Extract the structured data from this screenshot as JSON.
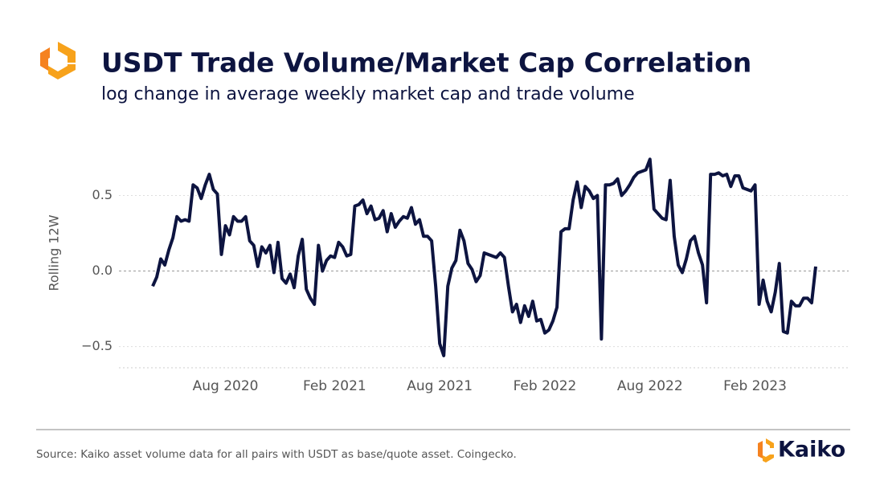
{
  "chart_data": {
    "type": "line",
    "title": "USDT Trade Volume/Market Cap Correlation",
    "subtitle": "log change in average weekly market cap and trade volume",
    "y_label": "Rolling 12W",
    "color": "#0d1440",
    "categories": [
      null,
      null,
      null,
      null,
      null,
      null,
      null,
      null,
      null,
      null,
      null,
      null,
      null,
      null,
      null,
      null,
      null,
      null,
      "Aug 2020",
      null,
      null,
      null,
      null,
      null,
      null,
      null,
      null,
      null,
      null,
      null,
      null,
      null,
      null,
      null,
      null,
      null,
      null,
      null,
      null,
      null,
      null,
      null,
      null,
      null,
      null,
      "Feb 2021",
      null,
      null,
      null,
      null,
      null,
      null,
      null,
      null,
      null,
      null,
      null,
      null,
      null,
      null,
      null,
      null,
      null,
      null,
      null,
      null,
      null,
      null,
      null,
      null,
      null,
      "Aug 2021",
      null,
      null,
      null,
      null,
      null,
      null,
      null,
      null,
      null,
      null,
      null,
      null,
      null,
      null,
      null,
      null,
      null,
      null,
      null,
      null,
      null,
      null,
      null,
      null,
      null,
      "Feb 2022",
      null,
      null,
      null,
      null,
      null,
      null,
      null,
      null,
      null,
      null,
      null,
      null,
      null,
      null,
      null,
      null,
      null,
      null,
      null,
      null,
      null,
      null,
      null,
      null,
      null,
      "Aug 2022",
      null,
      null,
      null,
      null,
      null,
      null,
      null,
      null,
      null,
      null,
      null,
      null,
      null,
      null,
      null,
      null,
      null,
      null,
      null,
      null,
      null,
      null,
      null,
      null,
      null,
      "Feb 2023",
      null,
      null,
      null,
      null,
      null,
      null,
      null,
      null,
      null,
      null,
      null,
      null,
      null,
      null,
      null
    ],
    "values": [
      -0.1,
      -0.04,
      0.08,
      0.04,
      0.14,
      0.22,
      0.36,
      0.33,
      0.34,
      0.33,
      0.57,
      0.55,
      0.48,
      0.57,
      0.64,
      0.54,
      0.51,
      0.11,
      0.3,
      0.24,
      0.36,
      0.33,
      0.33,
      0.36,
      0.2,
      0.17,
      0.03,
      0.16,
      0.12,
      0.17,
      -0.01,
      0.19,
      -0.05,
      -0.08,
      -0.02,
      -0.11,
      0.1,
      0.21,
      -0.12,
      -0.18,
      -0.22,
      0.17,
      0.0,
      0.07,
      0.1,
      0.09,
      0.19,
      0.16,
      0.1,
      0.11,
      0.43,
      0.44,
      0.47,
      0.38,
      0.43,
      0.34,
      0.35,
      0.4,
      0.26,
      0.38,
      0.29,
      0.33,
      0.36,
      0.35,
      0.42,
      0.31,
      0.34,
      0.23,
      0.23,
      0.2,
      -0.1,
      -0.48,
      -0.56,
      -0.1,
      0.02,
      0.07,
      0.27,
      0.2,
      0.05,
      0.01,
      -0.07,
      -0.03,
      0.12,
      0.11,
      0.1,
      0.09,
      0.12,
      0.09,
      -0.1,
      -0.27,
      -0.22,
      -0.34,
      -0.23,
      -0.3,
      -0.2,
      -0.33,
      -0.32,
      -0.41,
      -0.39,
      -0.33,
      -0.24,
      0.26,
      0.28,
      0.28,
      0.47,
      0.59,
      0.42,
      0.56,
      0.53,
      0.48,
      0.5,
      -0.45,
      0.57,
      0.57,
      0.58,
      0.61,
      0.5,
      0.53,
      0.57,
      0.62,
      0.65,
      0.66,
      0.67,
      0.74,
      0.41,
      0.38,
      0.35,
      0.34,
      0.6,
      0.23,
      0.04,
      -0.01,
      0.08,
      0.2,
      0.23,
      0.12,
      0.04,
      -0.21,
      0.64,
      0.64,
      0.65,
      0.63,
      0.64,
      0.56,
      0.63,
      0.63,
      0.55,
      0.54,
      0.53,
      0.57,
      -0.22,
      -0.06,
      -0.2,
      -0.27,
      -0.14,
      0.05,
      -0.4,
      -0.41,
      -0.2,
      -0.23,
      -0.23,
      -0.18,
      -0.18,
      -0.21,
      0.03
    ],
    "ylim": [
      -0.64,
      0.8
    ],
    "yticks": [
      {
        "value": -0.5,
        "label": "−0.5"
      },
      {
        "value": 0,
        "label": "0.0"
      },
      0.5
    ],
    "grid": true
  },
  "footer": {
    "source": "Source: Kaiko asset volume data for all pairs with USDT as base/quote asset. Coingecko.",
    "brand": "Kaiko"
  }
}
